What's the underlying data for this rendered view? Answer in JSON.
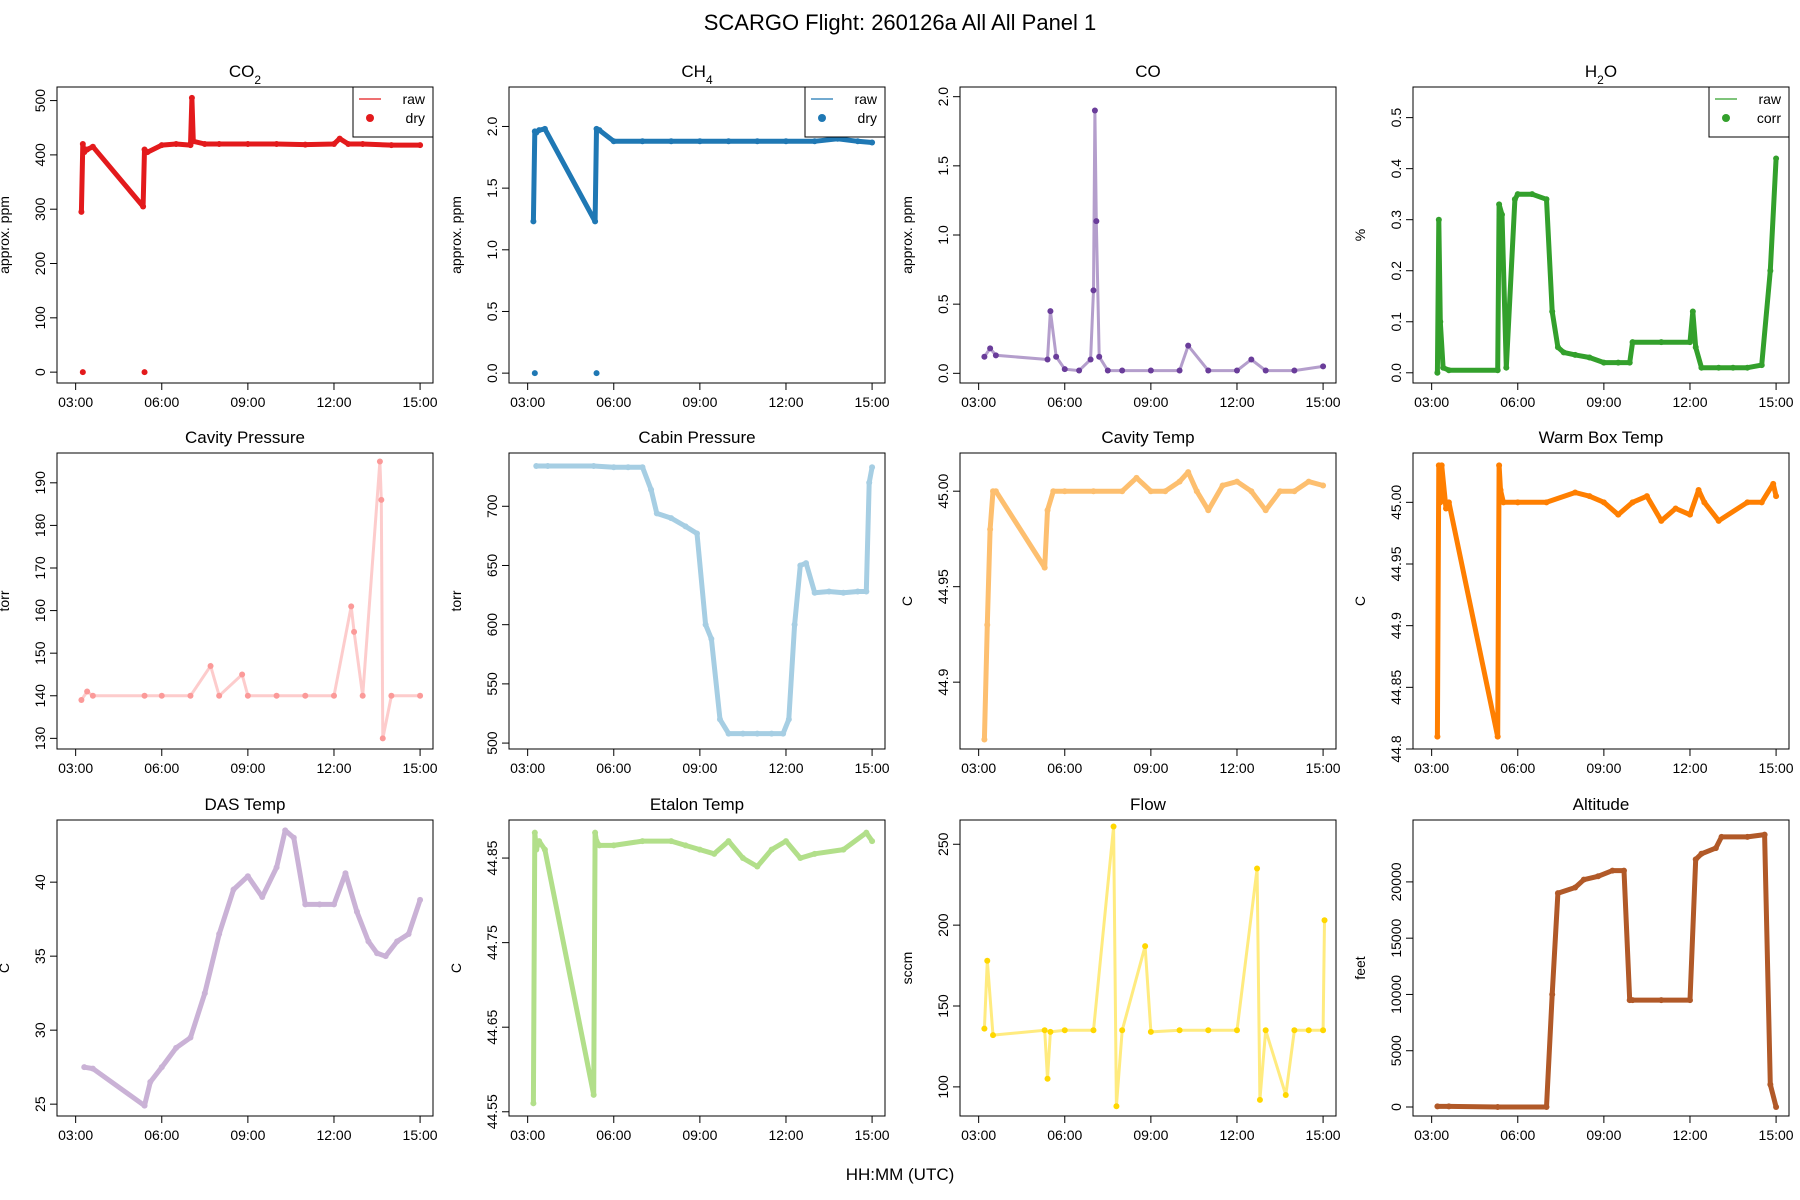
{
  "figure": {
    "title": "SCARGO Flight: 260126a  All All  Panel 1",
    "xlabel": "HH:MM (UTC)"
  },
  "chart_data": [
    {
      "id": "co2",
      "type": "line",
      "title": "CO",
      "title_sub": "2",
      "ylabel": "approx. ppm",
      "color": "#e31a1c",
      "yticks": [
        0,
        100,
        200,
        300,
        400,
        500
      ],
      "ylim": [
        -20,
        525
      ],
      "legend": {
        "position": "top-right",
        "entries": [
          {
            "label": "raw",
            "kind": "line"
          },
          {
            "label": "dry",
            "kind": "point"
          }
        ]
      },
      "x": [
        3.2,
        3.25,
        3.3,
        3.4,
        3.6,
        5.35,
        5.4,
        5.5,
        6.0,
        6.5,
        7.0,
        7.05,
        7.1,
        7.5,
        8.0,
        9.0,
        10.0,
        11.0,
        12.0,
        12.2,
        12.5,
        13.0,
        14.0,
        15.0
      ],
      "y": [
        295,
        420,
        405,
        410,
        415,
        305,
        410,
        405,
        418,
        420,
        418,
        505,
        425,
        420,
        420,
        420,
        420,
        419,
        420,
        430,
        420,
        420,
        418,
        418
      ],
      "outliers": [
        {
          "x": 3.25,
          "y": 0
        },
        {
          "x": 5.4,
          "y": 0
        }
      ]
    },
    {
      "id": "ch4",
      "type": "line",
      "title": "CH",
      "title_sub": "4",
      "ylabel": "approx. ppm",
      "color": "#1f78b4",
      "yticks": [
        0.0,
        0.5,
        1.0,
        1.5,
        2.0
      ],
      "ylim": [
        -0.08,
        2.32
      ],
      "legend": {
        "position": "top-right",
        "entries": [
          {
            "label": "raw",
            "kind": "line"
          },
          {
            "label": "dry",
            "kind": "point"
          }
        ]
      },
      "x": [
        3.2,
        3.25,
        3.3,
        3.4,
        3.6,
        5.35,
        5.4,
        5.5,
        6.0,
        7.0,
        8.0,
        9.0,
        10.0,
        11.0,
        12.0,
        13.0,
        13.8,
        14.5,
        15.0
      ],
      "y": [
        1.23,
        1.96,
        1.95,
        1.97,
        1.98,
        1.23,
        1.98,
        1.97,
        1.88,
        1.88,
        1.88,
        1.88,
        1.88,
        1.88,
        1.88,
        1.88,
        1.9,
        1.88,
        1.87
      ],
      "outliers": [
        {
          "x": 3.25,
          "y": 0.0
        },
        {
          "x": 5.4,
          "y": 0.0
        }
      ]
    },
    {
      "id": "co",
      "type": "scatter",
      "title": "CO",
      "title_sub": "",
      "ylabel": "approx. ppm",
      "color": "#6a3d9a",
      "yticks": [
        0.0,
        0.5,
        1.0,
        1.5,
        2.0
      ],
      "ylim": [
        -0.07,
        2.07
      ],
      "x": [
        3.2,
        3.4,
        3.6,
        5.4,
        5.5,
        5.7,
        6.0,
        6.5,
        6.9,
        7.0,
        7.05,
        7.1,
        7.2,
        7.5,
        8.0,
        9.0,
        10.0,
        10.3,
        11.0,
        12.0,
        12.5,
        13.0,
        14.0,
        15.0
      ],
      "y": [
        0.12,
        0.18,
        0.13,
        0.1,
        0.45,
        0.12,
        0.03,
        0.02,
        0.1,
        0.6,
        1.9,
        1.1,
        0.12,
        0.02,
        0.02,
        0.02,
        0.02,
        0.2,
        0.02,
        0.02,
        0.1,
        0.02,
        0.02,
        0.05
      ]
    },
    {
      "id": "h2o",
      "type": "line",
      "title": "H",
      "title_sub": "2",
      "title_after": "O",
      "ylabel": "%",
      "color": "#33a02c",
      "yticks": [
        0.0,
        0.1,
        0.2,
        0.3,
        0.4,
        0.5
      ],
      "ylim": [
        -0.02,
        0.56
      ],
      "legend": {
        "position": "top-right",
        "entries": [
          {
            "label": "raw",
            "kind": "line"
          },
          {
            "label": "corr",
            "kind": "point"
          }
        ]
      },
      "x": [
        3.2,
        3.25,
        3.3,
        3.4,
        3.6,
        5.3,
        5.35,
        5.45,
        5.6,
        5.9,
        6.0,
        6.5,
        7.0,
        7.2,
        7.4,
        7.6,
        8.0,
        8.5,
        9.0,
        9.5,
        9.9,
        10.0,
        11.0,
        12.0,
        12.1,
        12.2,
        12.4,
        13.0,
        13.5,
        14.0,
        14.5,
        14.8,
        15.0
      ],
      "y": [
        0.0,
        0.3,
        0.1,
        0.01,
        0.005,
        0.005,
        0.33,
        0.31,
        0.01,
        0.34,
        0.35,
        0.35,
        0.34,
        0.12,
        0.05,
        0.04,
        0.035,
        0.03,
        0.02,
        0.02,
        0.02,
        0.06,
        0.06,
        0.06,
        0.12,
        0.05,
        0.01,
        0.01,
        0.01,
        0.01,
        0.015,
        0.2,
        0.42
      ]
    },
    {
      "id": "cavity_pressure",
      "type": "scatter",
      "title": "Cavity Pressure",
      "ylabel": "torr",
      "color": "#fb9a99",
      "yticks": [
        130,
        140,
        150,
        160,
        170,
        180,
        190
      ],
      "ylim": [
        127.5,
        197
      ],
      "x": [
        3.2,
        3.4,
        3.6,
        5.4,
        6.0,
        7.0,
        7.7,
        8.0,
        8.8,
        9.0,
        10.0,
        11.0,
        12.0,
        12.6,
        12.7,
        13.0,
        13.6,
        13.65,
        13.7,
        14.0,
        15.0
      ],
      "y": [
        139,
        141,
        140,
        140,
        140,
        140,
        147,
        140,
        145,
        140,
        140,
        140,
        140,
        161,
        155,
        140,
        195,
        186,
        130,
        140,
        140
      ]
    },
    {
      "id": "cabin_pressure",
      "type": "line",
      "title": "Cabin Pressure",
      "ylabel": "torr",
      "color": "#a6cee3",
      "yticks": [
        500,
        550,
        600,
        650,
        700
      ],
      "ylim": [
        495,
        745
      ],
      "x": [
        3.3,
        3.7,
        5.3,
        6.0,
        6.5,
        7.0,
        7.3,
        7.5,
        8.0,
        8.5,
        8.9,
        9.2,
        9.4,
        9.7,
        10.0,
        10.5,
        11.0,
        11.5,
        11.9,
        12.1,
        12.3,
        12.5,
        12.7,
        13.0,
        13.5,
        14.0,
        14.5,
        14.8,
        14.9,
        15.0
      ],
      "y": [
        734,
        734,
        734,
        733,
        733,
        733,
        714,
        694,
        690,
        683,
        677,
        600,
        588,
        520,
        508,
        508,
        508,
        508,
        508,
        520,
        600,
        650,
        652,
        627,
        628,
        627,
        628,
        628,
        720,
        733
      ]
    },
    {
      "id": "cavity_temp",
      "type": "line",
      "title": "Cavity Temp",
      "ylabel": "C",
      "color": "#fdbf6f",
      "yticks": [
        44.9,
        44.95,
        45.0
      ],
      "ylim": [
        44.865,
        45.02
      ],
      "x": [
        3.2,
        3.3,
        3.4,
        3.5,
        3.6,
        5.3,
        5.4,
        5.6,
        6.0,
        7.0,
        8.0,
        8.5,
        9.0,
        9.5,
        10.0,
        10.3,
        10.6,
        11.0,
        11.5,
        12.0,
        12.5,
        13.0,
        13.5,
        14.0,
        14.5,
        15.0
      ],
      "y": [
        44.87,
        44.93,
        44.98,
        45.0,
        45.0,
        44.96,
        44.99,
        45.0,
        45.0,
        45.0,
        45.0,
        45.007,
        45.0,
        45.0,
        45.005,
        45.01,
        45.0,
        44.99,
        45.003,
        45.005,
        45.0,
        44.99,
        45.0,
        45.0,
        45.005,
        45.003
      ]
    },
    {
      "id": "warm_box_temp",
      "type": "line",
      "title": "Warm Box Temp",
      "ylabel": "C",
      "color": "#ff7f00",
      "yticks": [
        44.8,
        44.85,
        44.9,
        44.95,
        45.0
      ],
      "ylim": [
        44.8,
        45.04
      ],
      "x": [
        3.2,
        3.25,
        3.3,
        3.35,
        3.5,
        3.6,
        5.3,
        5.35,
        5.4,
        5.5,
        6.0,
        7.0,
        8.0,
        8.5,
        9.0,
        9.5,
        10.0,
        10.5,
        11.0,
        11.5,
        12.0,
        12.3,
        12.5,
        13.0,
        14.0,
        14.5,
        14.9,
        15.0
      ],
      "y": [
        44.81,
        45.03,
        45.0,
        45.03,
        44.995,
        45.0,
        44.81,
        45.03,
        45.01,
        45.0,
        45.0,
        45.0,
        45.008,
        45.005,
        45.0,
        44.99,
        45.0,
        45.005,
        44.985,
        44.995,
        44.99,
        45.01,
        45.0,
        44.985,
        45.0,
        45.0,
        45.015,
        45.005
      ]
    },
    {
      "id": "das_temp",
      "type": "line",
      "title": "DAS Temp",
      "ylabel": "C",
      "color": "#cab2d6",
      "yticks": [
        25,
        30,
        35,
        40
      ],
      "ylim": [
        24.2,
        44.2
      ],
      "x": [
        3.3,
        3.6,
        5.4,
        5.6,
        6.0,
        6.5,
        7.0,
        7.5,
        8.0,
        8.5,
        9.0,
        9.5,
        10.0,
        10.3,
        10.6,
        11.0,
        11.5,
        12.0,
        12.4,
        12.8,
        13.2,
        13.5,
        13.8,
        14.2,
        14.6,
        15.0
      ],
      "y": [
        27.5,
        27.4,
        24.9,
        26.5,
        27.5,
        28.8,
        29.5,
        32.5,
        36.5,
        39.5,
        40.4,
        39.0,
        41.0,
        43.5,
        43.0,
        38.5,
        38.5,
        38.5,
        40.6,
        38.0,
        36.0,
        35.2,
        35.0,
        36.0,
        36.5,
        38.8
      ]
    },
    {
      "id": "etalon_temp",
      "type": "line",
      "title": "Etalon Temp",
      "ylabel": "C",
      "color": "#b2df8a",
      "yticks": [
        44.55,
        44.65,
        44.75,
        44.85
      ],
      "ylim": [
        44.545,
        44.895
      ],
      "x": [
        3.2,
        3.25,
        3.3,
        3.4,
        3.6,
        5.3,
        5.35,
        5.4,
        5.5,
        6.0,
        7.0,
        8.0,
        8.5,
        9.0,
        9.5,
        10.0,
        10.5,
        11.0,
        11.5,
        12.0,
        12.5,
        13.0,
        14.0,
        14.8,
        15.0
      ],
      "y": [
        44.56,
        44.88,
        44.86,
        44.87,
        44.86,
        44.57,
        44.88,
        44.87,
        44.865,
        44.865,
        44.87,
        44.87,
        44.865,
        44.86,
        44.855,
        44.87,
        44.85,
        44.84,
        44.86,
        44.87,
        44.85,
        44.855,
        44.86,
        44.88,
        44.87
      ]
    },
    {
      "id": "flow",
      "type": "scatter",
      "title": "Flow",
      "ylabel": "sccm",
      "color": "#ffd700",
      "yticks": [
        100,
        150,
        200,
        250
      ],
      "ylim": [
        82,
        265
      ],
      "x": [
        3.2,
        3.3,
        3.5,
        5.3,
        5.4,
        5.5,
        6.0,
        7.0,
        7.7,
        7.8,
        8.0,
        8.8,
        9.0,
        10.0,
        11.0,
        12.0,
        12.7,
        12.8,
        13.0,
        13.7,
        14.0,
        14.5,
        15.0,
        15.05
      ],
      "y": [
        136,
        178,
        132,
        135,
        105,
        134,
        135,
        135,
        261,
        88,
        135,
        187,
        134,
        135,
        135,
        135,
        235,
        92,
        135,
        95,
        135,
        135,
        135,
        203
      ]
    },
    {
      "id": "altitude",
      "type": "line",
      "title": "Altitude",
      "ylabel": "feet",
      "color": "#b15928",
      "yticks": [
        0,
        5000,
        10000,
        15000,
        20000
      ],
      "ylim": [
        -800,
        25500
      ],
      "x": [
        3.2,
        3.6,
        5.3,
        7.0,
        7.2,
        7.4,
        8.0,
        8.3,
        8.8,
        9.3,
        9.7,
        9.9,
        10.0,
        11.0,
        12.0,
        12.2,
        12.4,
        12.9,
        13.1,
        14.0,
        14.6,
        14.8,
        15.0
      ],
      "y": [
        50,
        50,
        0,
        0,
        10000,
        19000,
        19500,
        20200,
        20500,
        21000,
        21000,
        9500,
        9500,
        9500,
        9500,
        22000,
        22500,
        23000,
        24000,
        24000,
        24200,
        2000,
        0
      ]
    }
  ],
  "x_axis": {
    "xlim": [
      2.35,
      15.45
    ],
    "ticks": [
      3,
      6,
      9,
      12,
      15
    ],
    "tick_labels": [
      "03:00",
      "06:00",
      "09:00",
      "12:00",
      "15:00"
    ]
  }
}
